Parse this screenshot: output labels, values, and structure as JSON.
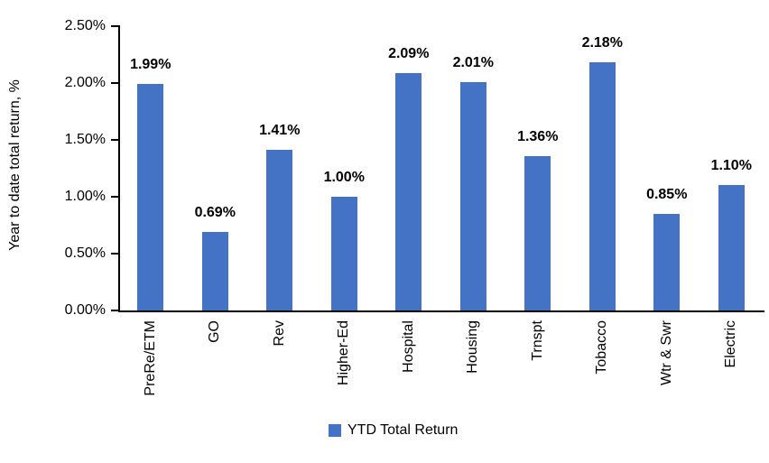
{
  "chart_data": {
    "type": "bar",
    "title": "",
    "xlabel": "",
    "ylabel": "Year to date total return, %",
    "categories": [
      "PreRe/ETM",
      "GO",
      "Rev",
      "Higher-Ed",
      "Hospital",
      "Housing",
      "Trnspt",
      "Tobacco",
      "Wtr & Swr",
      "Electric"
    ],
    "values": [
      1.99,
      0.69,
      1.41,
      1.0,
      2.09,
      2.01,
      1.36,
      2.18,
      0.85,
      1.1
    ],
    "value_labels": [
      "1.99%",
      "0.69%",
      "1.41%",
      "1.00%",
      "2.09%",
      "2.01%",
      "1.36%",
      "2.18%",
      "0.85%",
      "1.10%"
    ],
    "ylim": [
      0,
      2.5
    ],
    "ytick_labels": [
      "0.00%",
      "0.50%",
      "1.00%",
      "1.50%",
      "2.00%",
      "2.50%"
    ],
    "grid": false,
    "legend_position": "bottom",
    "legend": [
      {
        "label": "YTD Total Return",
        "color": "#4472C4"
      }
    ],
    "bar_color": "#4472C4"
  },
  "colors": {
    "bar": "#4472C4",
    "axis": "#000000",
    "text": "#000000",
    "background": "#FFFFFF"
  }
}
